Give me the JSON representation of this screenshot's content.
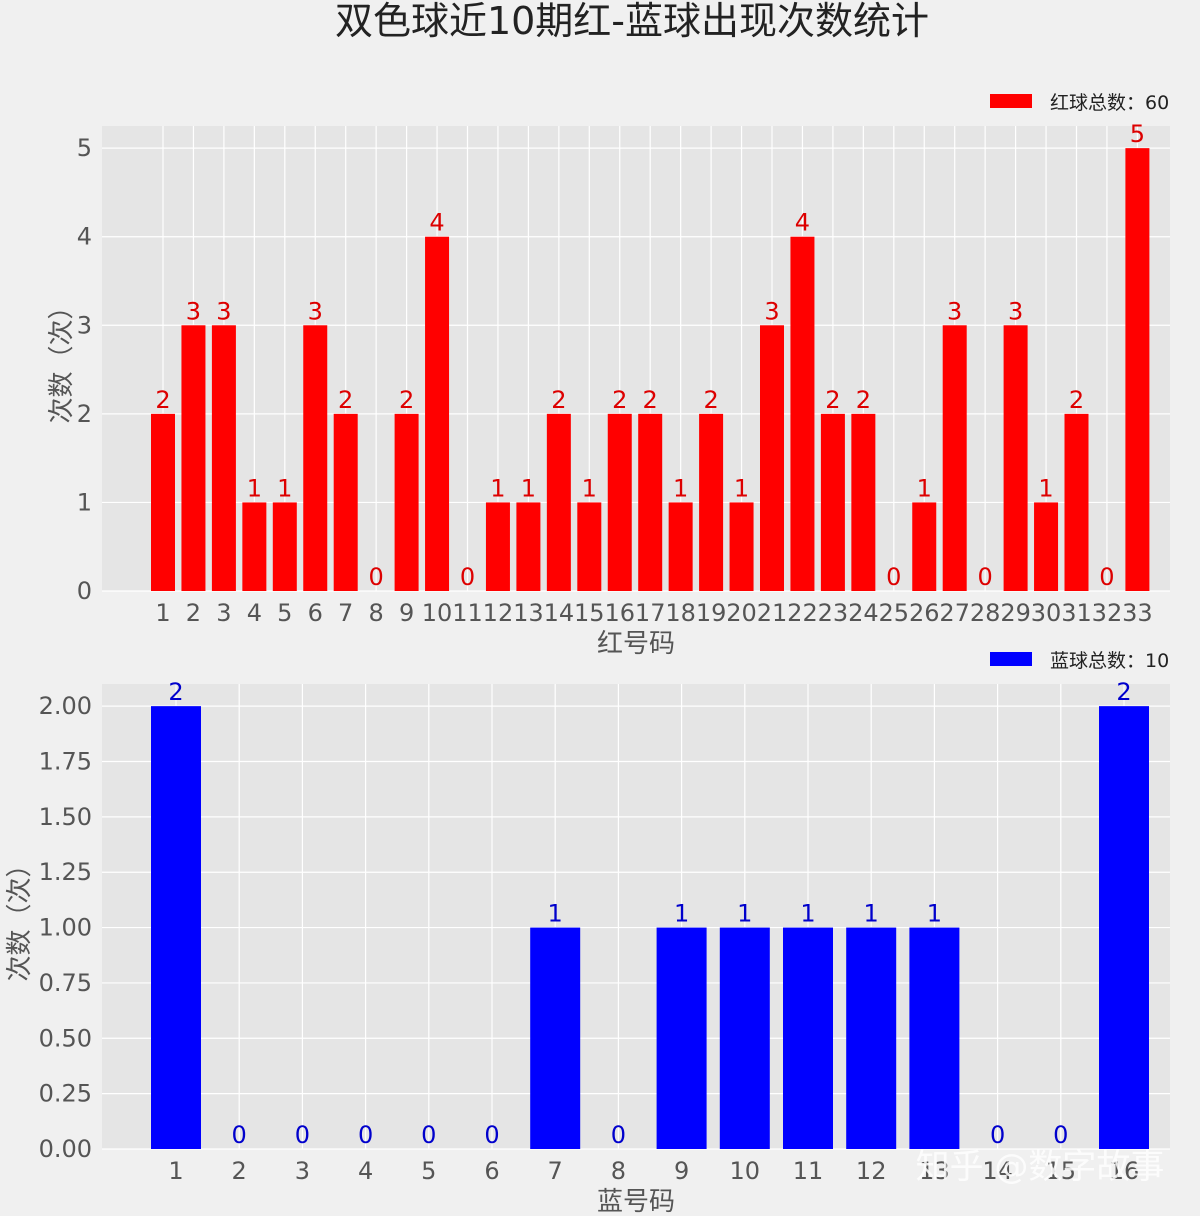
{
  "title": "双色球近10期红-蓝球出现次数统计",
  "watermark": "知乎 @数字故事",
  "chart_data": [
    {
      "type": "bar",
      "color": "#ff0000",
      "label_color": "#dd0000",
      "categories": [
        "1",
        "2",
        "3",
        "4",
        "5",
        "6",
        "7",
        "8",
        "9",
        "10",
        "11",
        "12",
        "13",
        "14",
        "15",
        "16",
        "17",
        "18",
        "19",
        "20",
        "21",
        "22",
        "23",
        "24",
        "25",
        "26",
        "27",
        "28",
        "29",
        "30",
        "31",
        "32",
        "33"
      ],
      "values": [
        2,
        3,
        3,
        1,
        1,
        3,
        2,
        0,
        2,
        4,
        0,
        1,
        1,
        2,
        1,
        2,
        2,
        1,
        2,
        1,
        3,
        4,
        2,
        2,
        0,
        1,
        3,
        0,
        3,
        1,
        2,
        0,
        5
      ],
      "xlabel": "红号码",
      "ylabel": "次数（次）",
      "ylim": [
        0,
        5.25
      ],
      "yticks": [
        "0",
        "1",
        "2",
        "3",
        "4",
        "5"
      ],
      "legend": "红球总数：60",
      "legend_position": "top-right",
      "grid": true
    },
    {
      "type": "bar",
      "color": "#0000ff",
      "label_color": "#0000cc",
      "categories": [
        "1",
        "2",
        "3",
        "4",
        "5",
        "6",
        "7",
        "8",
        "9",
        "10",
        "11",
        "12",
        "13",
        "14",
        "15",
        "16"
      ],
      "values": [
        2,
        0,
        0,
        0,
        0,
        0,
        1,
        0,
        1,
        1,
        1,
        1,
        1,
        0,
        0,
        2
      ],
      "xlabel": "蓝号码",
      "ylabel": "次数（次）",
      "ylim": [
        0,
        2.1
      ],
      "yticks": [
        "0.00",
        "0.25",
        "0.50",
        "0.75",
        "1.00",
        "1.25",
        "1.50",
        "1.75",
        "2.00"
      ],
      "legend": "蓝球总数：10",
      "legend_position": "top-right",
      "grid": true
    }
  ]
}
